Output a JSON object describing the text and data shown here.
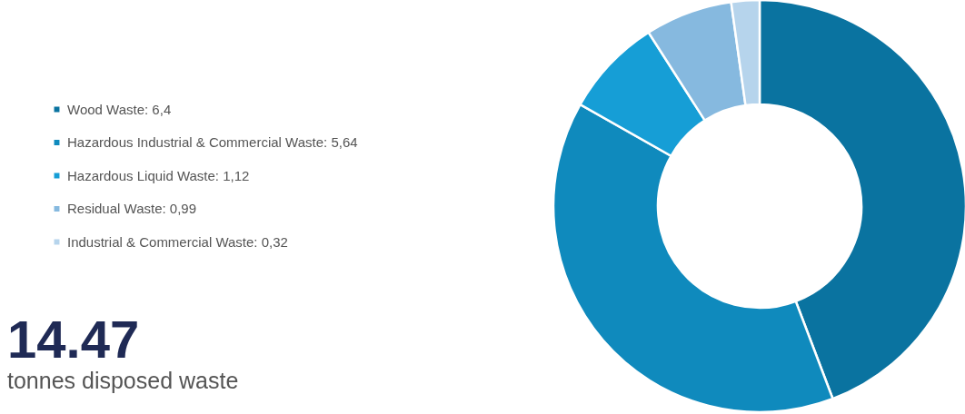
{
  "chart_data": {
    "type": "donut",
    "categories": [
      "Wood Waste: 6,4",
      "Hazardous Industrial & Commercial Waste:  5,64",
      "Hazardous Liquid Waste:  1,12",
      "Residual Waste:  0,99",
      "Industrial & Commercial Waste:  0,32"
    ],
    "values": [
      6.4,
      5.64,
      1.12,
      0.99,
      0.32
    ],
    "colors": [
      "#0a73a0",
      "#0f8abd",
      "#169ed6",
      "#86b9df",
      "#b6d4ec"
    ],
    "legend": "left",
    "annotations": [
      "14.47",
      "tonnes disposed waste"
    ]
  }
}
